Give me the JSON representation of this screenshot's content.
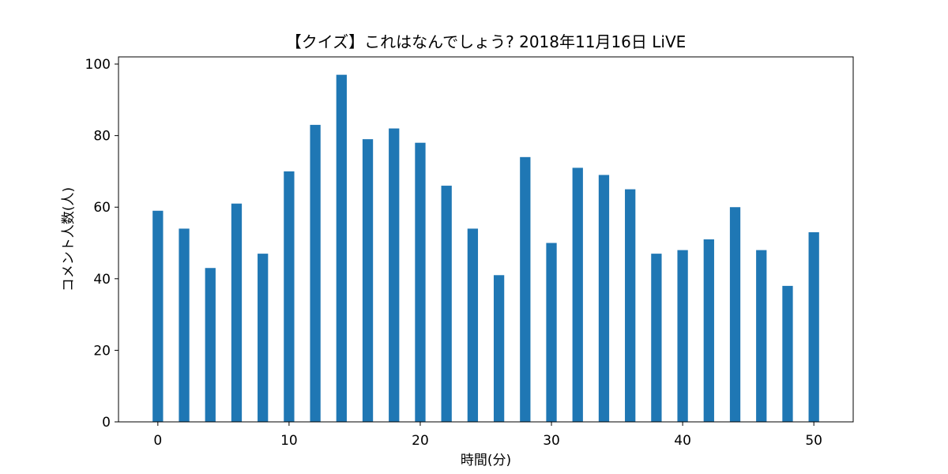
{
  "chart_data": {
    "type": "bar",
    "title": "【クイズ】これはなんでしょう? 2018年11月16日 LiVE",
    "xlabel": "時間(分)",
    "ylabel": "コメント人数(人)",
    "x": [
      0,
      2,
      4,
      6,
      8,
      10,
      12,
      14,
      16,
      18,
      20,
      22,
      24,
      26,
      28,
      30,
      32,
      34,
      36,
      38,
      40,
      42,
      44,
      46,
      48,
      50
    ],
    "values": [
      59,
      54,
      43,
      61,
      47,
      70,
      83,
      97,
      79,
      82,
      78,
      66,
      54,
      41,
      74,
      50,
      71,
      69,
      65,
      47,
      48,
      51,
      60,
      48,
      38,
      53
    ],
    "xlim": [
      -3,
      53
    ],
    "ylim": [
      0,
      102
    ],
    "xticks": [
      0,
      10,
      20,
      30,
      40,
      50
    ],
    "yticks": [
      0,
      20,
      40,
      60,
      80,
      100
    ],
    "bar_width": 0.8,
    "bar_color": "#1f77b4",
    "grid": false,
    "legend": false
  }
}
